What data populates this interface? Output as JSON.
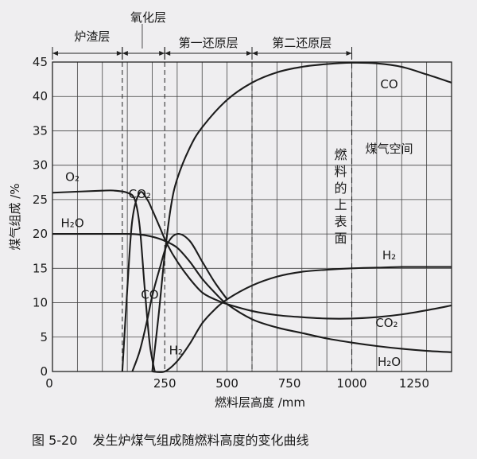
{
  "caption": {
    "figure_no": "图 5-20",
    "title": "发生炉煤气组成随燃料高度的变化曲线"
  },
  "chart_data": {
    "type": "line",
    "title": "",
    "xlabel": "燃料层高度 /mm",
    "ylabel": "煤气组成 /%",
    "xlim": [
      -200,
      1400
    ],
    "ylim": [
      0,
      45
    ],
    "x_ticks": [
      250,
      500,
      750,
      1000,
      1250
    ],
    "x_origin_label": "0",
    "y_ticks": [
      0,
      5,
      10,
      15,
      20,
      25,
      30,
      35,
      40,
      45
    ],
    "grid": true,
    "zones": [
      {
        "name": "炉渣层",
        "x_start": -200,
        "x_end": 80
      },
      {
        "name": "氧化层",
        "x_start": 80,
        "x_end": 250
      },
      {
        "name": "第一还原层",
        "x_start": 250,
        "x_end": 600
      },
      {
        "name": "第二还原层",
        "x_start": 600,
        "x_end": 1000
      }
    ],
    "fuel_surface": {
      "x": 1000,
      "label": "燃料的上表面"
    },
    "gas_space_label": "煤气空间",
    "series": [
      {
        "name": "CO",
        "label": "CO",
        "x": [
          200,
          225,
          250,
          275,
          300,
          350,
          400,
          500,
          600,
          700,
          800,
          900,
          1000,
          1100,
          1200,
          1300,
          1400
        ],
        "values": [
          0,
          8,
          17,
          24,
          28,
          32.5,
          35.5,
          39.5,
          42,
          43.5,
          44.3,
          44.7,
          44.9,
          44.8,
          44.3,
          43.2,
          42
        ]
      },
      {
        "name": "CO2",
        "label": "CO₂",
        "x": [
          80,
          100,
          120,
          150,
          180,
          200,
          230,
          260,
          300,
          350,
          400,
          450,
          500,
          600,
          700,
          800,
          900,
          1000,
          1100,
          1200,
          1300,
          1400
        ],
        "values": [
          0,
          12,
          22,
          26,
          25,
          23.5,
          21,
          18.5,
          16,
          13.5,
          11.5,
          10.5,
          9.8,
          8.8,
          8.2,
          7.9,
          7.7,
          7.7,
          7.9,
          8.3,
          8.9,
          9.6
        ]
      },
      {
        "name": "O2",
        "label": "O₂",
        "x": [
          -200,
          0,
          50,
          100,
          130,
          150,
          170,
          190,
          210
        ],
        "values": [
          26,
          26.3,
          26.3,
          26,
          25,
          21,
          12,
          4,
          0
        ]
      },
      {
        "name": "H2O",
        "label": "H₂O",
        "x": [
          -200,
          0,
          100,
          150,
          200,
          250,
          300,
          350,
          400,
          450,
          500,
          600,
          700,
          800,
          900,
          1000,
          1100,
          1200,
          1300,
          1400
        ],
        "values": [
          20,
          20,
          20,
          19.9,
          19.6,
          19,
          18,
          16,
          13.5,
          11.5,
          9.8,
          7.6,
          6.4,
          5.6,
          4.8,
          4.2,
          3.7,
          3.3,
          3,
          2.8
        ]
      },
      {
        "name": "H2",
        "label": "H₂",
        "x": [
          200,
          250,
          300,
          350,
          400,
          450,
          500,
          600,
          700,
          800,
          900,
          1000,
          1100,
          1200,
          1300,
          1400
        ],
        "values": [
          0,
          0,
          1.5,
          4,
          7,
          9,
          10.5,
          12.5,
          13.8,
          14.5,
          14.8,
          15,
          15.1,
          15.2,
          15.2,
          15.2
        ]
      },
      {
        "name": "CO2-rise",
        "label": "",
        "x": [
          120,
          150,
          180,
          200,
          230,
          260,
          300,
          350,
          400,
          450,
          500
        ],
        "values": [
          0,
          3,
          7.5,
          11,
          15,
          18.5,
          20,
          19,
          16,
          13,
          10.5
        ]
      }
    ],
    "legend": "none"
  }
}
